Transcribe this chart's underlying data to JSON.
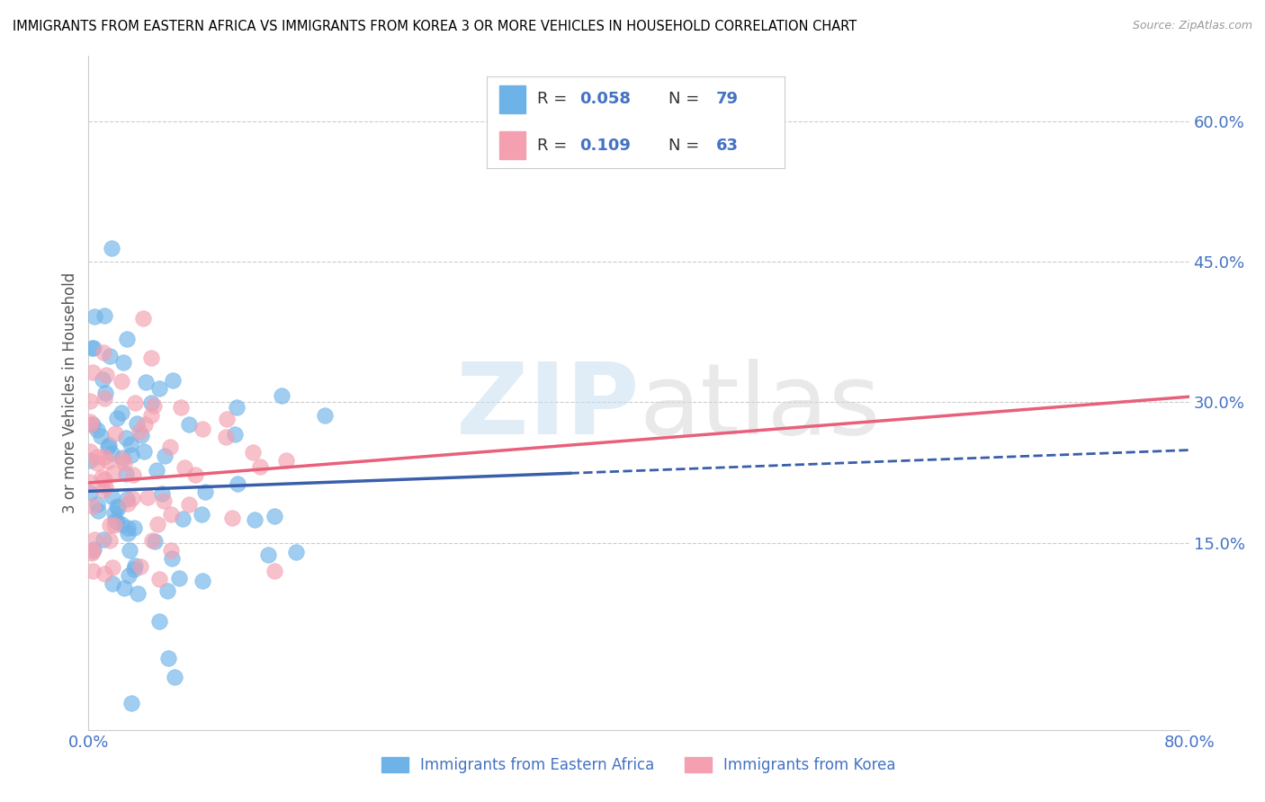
{
  "title": "IMMIGRANTS FROM EASTERN AFRICA VS IMMIGRANTS FROM KOREA 3 OR MORE VEHICLES IN HOUSEHOLD CORRELATION CHART",
  "source": "Source: ZipAtlas.com",
  "ylabel": "3 or more Vehicles in Household",
  "yticks": [
    "15.0%",
    "30.0%",
    "45.0%",
    "60.0%"
  ],
  "ytick_vals": [
    0.15,
    0.3,
    0.45,
    0.6
  ],
  "xrange": [
    0.0,
    0.8
  ],
  "yrange": [
    -0.05,
    0.67
  ],
  "legend_label1": "Immigrants from Eastern Africa",
  "legend_label2": "Immigrants from Korea",
  "R1": 0.058,
  "N1": 79,
  "R2": 0.109,
  "N2": 63,
  "color_blue": "#6eb3e8",
  "color_pink": "#f4a0b0",
  "color_blue_line": "#3a5faa",
  "color_pink_line": "#e8607a",
  "color_blue_text": "#4472c4",
  "color_axis_text": "#4472c4",
  "grid_color": "#cccccc",
  "blue_line_solid_end": 0.35,
  "pink_line_x_start": 0.0,
  "pink_line_x_end": 0.8,
  "blue_line_y_start": 0.205,
  "blue_line_y_end_solid": 0.225,
  "blue_line_y_end_dash": 0.245,
  "pink_line_y_start": 0.215,
  "pink_line_y_end": 0.3
}
